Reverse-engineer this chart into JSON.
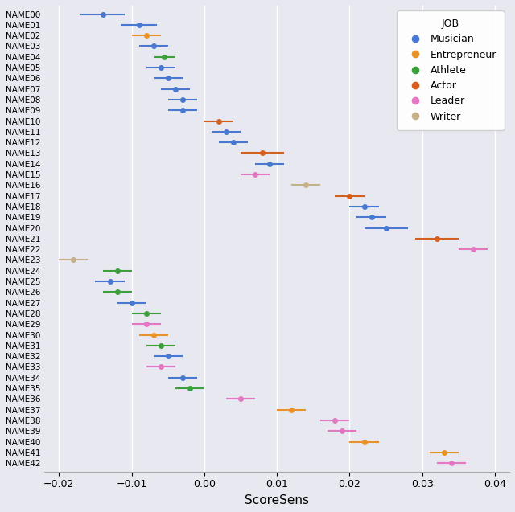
{
  "names": [
    "NAME00",
    "NAME01",
    "NAME02",
    "NAME03",
    "NAME04",
    "NAME05",
    "NAME06",
    "NAME07",
    "NAME08",
    "NAME09",
    "NAME10",
    "NAME11",
    "NAME12",
    "NAME13",
    "NAME14",
    "NAME15",
    "NAME16",
    "NAME17",
    "NAME18",
    "NAME19",
    "NAME20",
    "NAME21",
    "NAME22",
    "NAME23",
    "NAME24",
    "NAME25",
    "NAME26",
    "NAME27",
    "NAME28",
    "NAME29",
    "NAME30",
    "NAME31",
    "NAME32",
    "NAME33",
    "NAME34",
    "NAME35",
    "NAME36",
    "NAME37",
    "NAME38",
    "NAME39",
    "NAME40",
    "NAME41",
    "NAME42"
  ],
  "centers": [
    -0.014,
    -0.009,
    -0.008,
    -0.007,
    -0.0055,
    -0.006,
    -0.005,
    -0.004,
    -0.003,
    -0.003,
    0.002,
    0.003,
    0.004,
    0.008,
    0.009,
    0.007,
    0.014,
    0.02,
    0.022,
    0.023,
    0.025,
    0.032,
    0.037,
    -0.018,
    -0.012,
    -0.013,
    -0.012,
    -0.01,
    -0.008,
    -0.008,
    -0.007,
    -0.006,
    -0.005,
    -0.006,
    -0.003,
    -0.002,
    0.005,
    0.012,
    0.018,
    0.019,
    0.022,
    0.033,
    0.034
  ],
  "xerr_low": [
    0.003,
    0.0025,
    0.002,
    0.002,
    0.0015,
    0.002,
    0.002,
    0.002,
    0.002,
    0.002,
    0.002,
    0.002,
    0.002,
    0.003,
    0.002,
    0.002,
    0.002,
    0.002,
    0.002,
    0.002,
    0.003,
    0.003,
    0.002,
    0.002,
    0.002,
    0.002,
    0.002,
    0.002,
    0.002,
    0.002,
    0.002,
    0.002,
    0.002,
    0.002,
    0.002,
    0.002,
    0.002,
    0.002,
    0.002,
    0.002,
    0.002,
    0.002,
    0.002
  ],
  "xerr_high": [
    0.003,
    0.0025,
    0.002,
    0.002,
    0.0015,
    0.002,
    0.002,
    0.002,
    0.002,
    0.002,
    0.002,
    0.002,
    0.002,
    0.003,
    0.002,
    0.002,
    0.002,
    0.002,
    0.002,
    0.002,
    0.003,
    0.003,
    0.002,
    0.002,
    0.002,
    0.002,
    0.002,
    0.002,
    0.002,
    0.002,
    0.002,
    0.002,
    0.002,
    0.002,
    0.002,
    0.002,
    0.002,
    0.002,
    0.002,
    0.002,
    0.002,
    0.002,
    0.002
  ],
  "jobs": [
    "Musician",
    "Musician",
    "Entrepreneur",
    "Musician",
    "Athlete",
    "Musician",
    "Musician",
    "Musician",
    "Musician",
    "Musician",
    "Actor",
    "Musician",
    "Musician",
    "Actor",
    "Musician",
    "Leader",
    "Writer",
    "Actor",
    "Musician",
    "Musician",
    "Musician",
    "Actor",
    "Leader",
    "Writer",
    "Athlete",
    "Musician",
    "Athlete",
    "Musician",
    "Athlete",
    "Leader",
    "Entrepreneur",
    "Athlete",
    "Musician",
    "Leader",
    "Musician",
    "Athlete",
    "Leader",
    "Entrepreneur",
    "Leader",
    "Leader",
    "Entrepreneur",
    "Entrepreneur",
    "Leader"
  ],
  "job_colors": {
    "Musician": "#4878cf",
    "Entrepreneur": "#e8932a",
    "Athlete": "#3ba03b",
    "Actor": "#d45f1e",
    "Leader": "#e377c2",
    "Writer": "#c5b08a"
  },
  "xlabel": "ScoreSens",
  "legend_title": "JOB",
  "xlim": [
    -0.022,
    0.042
  ],
  "xticks": [
    -0.02,
    -0.01,
    0.0,
    0.01,
    0.02,
    0.03,
    0.04
  ],
  "bg_color": "#e8e8f0",
  "grid_color": "white",
  "figsize": [
    6.4,
    6.37
  ],
  "dpi": 100
}
